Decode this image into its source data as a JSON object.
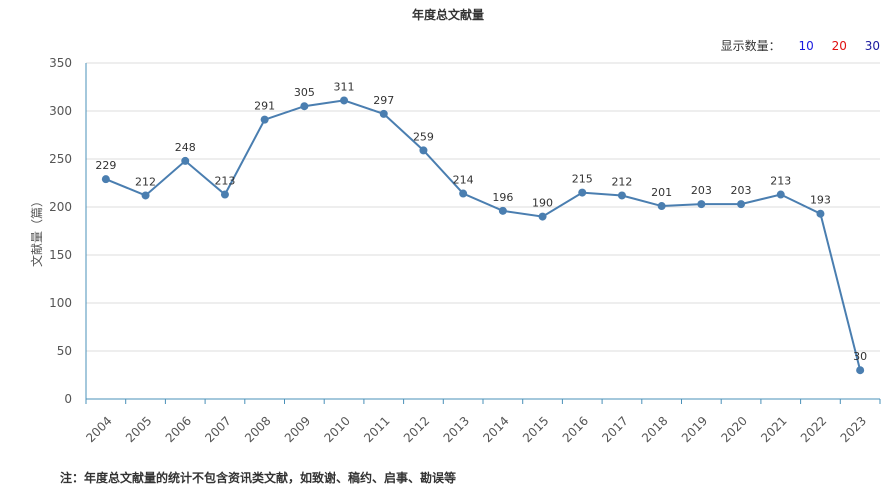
{
  "title": "年度总文献量",
  "controls": {
    "label": "显示数量：",
    "options": [
      {
        "label": "10",
        "color": "#1a1adf"
      },
      {
        "label": "20",
        "color": "#e01010"
      },
      {
        "label": "30",
        "color": "#1a1a9f"
      }
    ]
  },
  "note": "注：年度总文献量的统计不包含资讯类文献，如致谢、稿约、启事、勘误等",
  "chart_data": {
    "type": "line",
    "title": "年度总文献量",
    "xlabel": "",
    "ylabel": "文献量（篇）",
    "ylim": [
      0,
      350
    ],
    "yticks": [
      0,
      50,
      100,
      150,
      200,
      250,
      300,
      350
    ],
    "grid": true,
    "color": "#4a7eb0",
    "x": [
      "2004",
      "2005",
      "2006",
      "2007",
      "2008",
      "2009",
      "2010",
      "2011",
      "2012",
      "2013",
      "2014",
      "2015",
      "2016",
      "2017",
      "2018",
      "2019",
      "2020",
      "2021",
      "2022",
      "2023"
    ],
    "values": [
      229,
      212,
      248,
      213,
      291,
      305,
      311,
      297,
      259,
      214,
      196,
      190,
      215,
      212,
      201,
      203,
      203,
      213,
      193,
      30
    ]
  }
}
